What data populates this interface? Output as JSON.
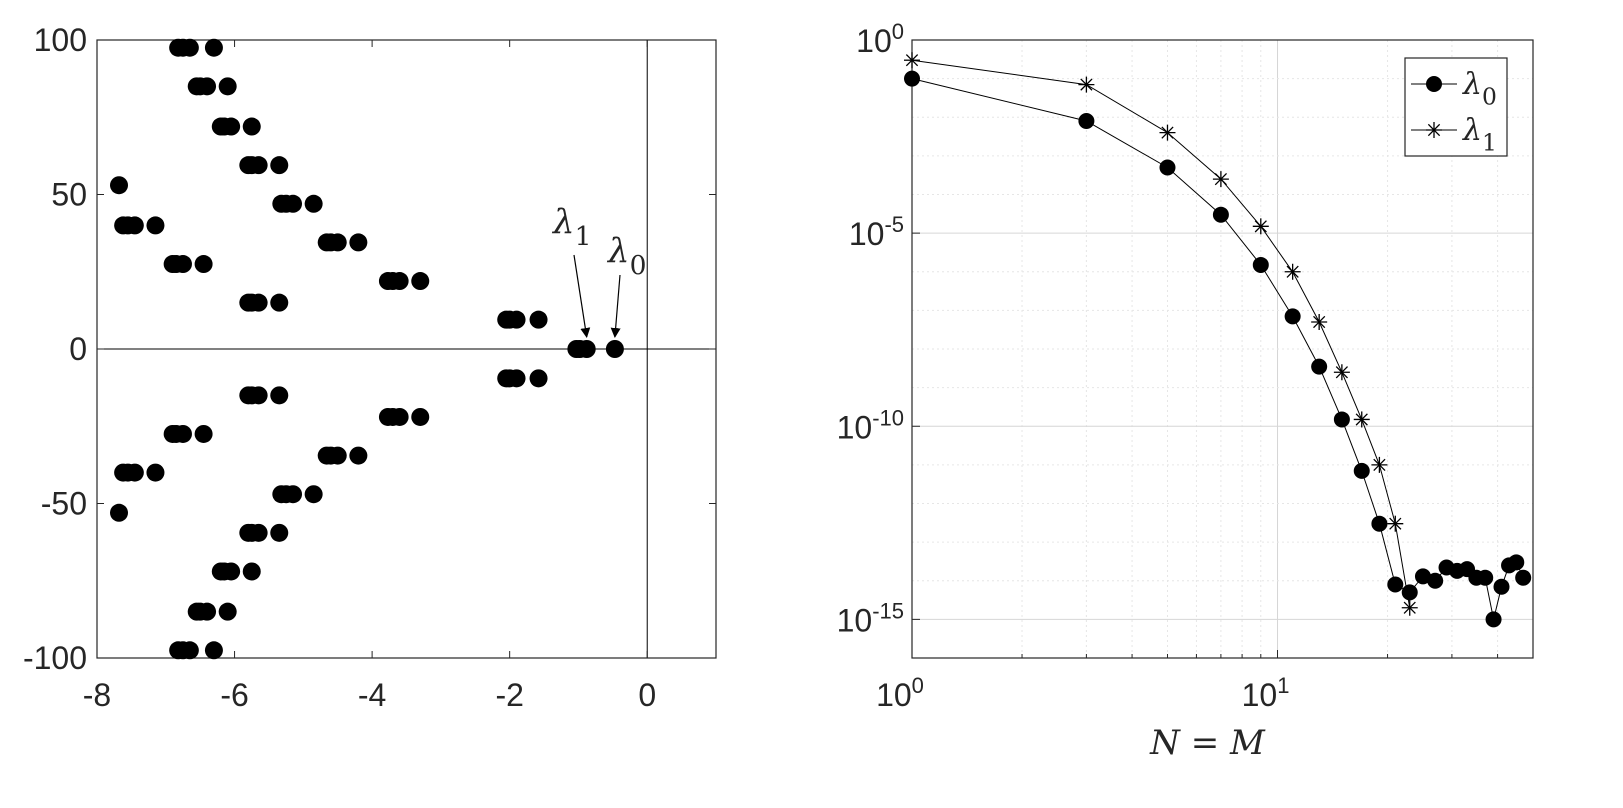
{
  "chart_data": [
    {
      "type": "scatter",
      "xlim": [
        -8,
        1
      ],
      "ylim": [
        -100,
        100
      ],
      "x_ticks": [
        -8,
        -6,
        -4,
        -2,
        0
      ],
      "y_ticks": [
        -100,
        -50,
        0,
        50,
        100
      ],
      "x_tick_labels": [
        "-8",
        "-6",
        "-4",
        "-2",
        "0"
      ],
      "y_tick_labels": [
        "-100",
        "-50",
        "0",
        "50",
        "100"
      ],
      "grid": false,
      "zero_lines": true,
      "marker": "filled-circle",
      "annotations": [
        {
          "label": "λ",
          "sub": "1",
          "target": [
            -0.88,
            0
          ]
        },
        {
          "label": "λ",
          "sub": "0",
          "target": [
            -0.47,
            0
          ]
        }
      ],
      "points": [
        [
          -0.47,
          0
        ],
        [
          -0.88,
          0
        ],
        [
          -0.98,
          0
        ],
        [
          -1.03,
          0
        ],
        [
          -1.58,
          9.5
        ],
        [
          -1.9,
          9.5
        ],
        [
          -2.0,
          9.5
        ],
        [
          -2.05,
          9.5
        ],
        [
          -1.58,
          -9.5
        ],
        [
          -1.9,
          -9.5
        ],
        [
          -2.0,
          -9.5
        ],
        [
          -2.05,
          -9.5
        ],
        [
          -3.3,
          22
        ],
        [
          -3.6,
          22
        ],
        [
          -3.7,
          22
        ],
        [
          -3.77,
          22
        ],
        [
          -3.3,
          -22
        ],
        [
          -3.6,
          -22
        ],
        [
          -3.7,
          -22
        ],
        [
          -3.77,
          -22
        ],
        [
          -4.2,
          34.5
        ],
        [
          -4.5,
          34.5
        ],
        [
          -4.6,
          34.5
        ],
        [
          -4.66,
          34.5
        ],
        [
          -4.2,
          -34.5
        ],
        [
          -4.5,
          -34.5
        ],
        [
          -4.6,
          -34.5
        ],
        [
          -4.66,
          -34.5
        ],
        [
          -4.85,
          47
        ],
        [
          -5.15,
          47
        ],
        [
          -5.25,
          47
        ],
        [
          -5.32,
          47
        ],
        [
          -4.85,
          -47
        ],
        [
          -5.15,
          -47
        ],
        [
          -5.25,
          -47
        ],
        [
          -5.32,
          -47
        ],
        [
          -5.35,
          59.5
        ],
        [
          -5.65,
          59.5
        ],
        [
          -5.75,
          59.5
        ],
        [
          -5.8,
          59.5
        ],
        [
          -5.35,
          -59.5
        ],
        [
          -5.65,
          -59.5
        ],
        [
          -5.75,
          -59.5
        ],
        [
          -5.8,
          -59.5
        ],
        [
          -5.75,
          72
        ],
        [
          -6.05,
          72
        ],
        [
          -6.15,
          72
        ],
        [
          -6.2,
          72
        ],
        [
          -5.75,
          -72
        ],
        [
          -6.05,
          -72
        ],
        [
          -6.15,
          -72
        ],
        [
          -6.2,
          -72
        ],
        [
          -6.1,
          85
        ],
        [
          -6.4,
          85
        ],
        [
          -6.5,
          85
        ],
        [
          -6.55,
          85
        ],
        [
          -6.1,
          -85
        ],
        [
          -6.4,
          -85
        ],
        [
          -6.5,
          -85
        ],
        [
          -6.55,
          -85
        ],
        [
          -6.3,
          97.5
        ],
        [
          -6.65,
          97.5
        ],
        [
          -6.75,
          97.5
        ],
        [
          -6.82,
          97.5
        ],
        [
          -6.3,
          -97.5
        ],
        [
          -6.65,
          -97.5
        ],
        [
          -6.75,
          -97.5
        ],
        [
          -6.82,
          -97.5
        ],
        [
          -5.35,
          15
        ],
        [
          -5.65,
          15
        ],
        [
          -5.75,
          15
        ],
        [
          -5.8,
          15
        ],
        [
          -5.35,
          -15
        ],
        [
          -5.65,
          -15
        ],
        [
          -5.75,
          -15
        ],
        [
          -5.8,
          -15
        ],
        [
          -6.45,
          27.5
        ],
        [
          -6.75,
          27.5
        ],
        [
          -6.85,
          27.5
        ],
        [
          -6.9,
          27.5
        ],
        [
          -6.45,
          -27.5
        ],
        [
          -6.75,
          -27.5
        ],
        [
          -6.85,
          -27.5
        ],
        [
          -6.9,
          -27.5
        ],
        [
          -7.15,
          40
        ],
        [
          -7.45,
          40
        ],
        [
          -7.55,
          40
        ],
        [
          -7.62,
          40
        ],
        [
          -7.15,
          -40
        ],
        [
          -7.45,
          -40
        ],
        [
          -7.55,
          -40
        ],
        [
          -7.62,
          -40
        ],
        [
          -7.68,
          53
        ],
        [
          -7.68,
          -53
        ]
      ]
    },
    {
      "type": "line",
      "scale": "loglog",
      "xlim": [
        1,
        50
      ],
      "ylim": [
        1e-16,
        1
      ],
      "x_tick_labels": [
        {
          "base": "10",
          "exp": "0",
          "value": 1
        },
        {
          "base": "10",
          "exp": "1",
          "value": 10
        }
      ],
      "y_tick_labels": [
        {
          "base": "10",
          "exp": "0",
          "value": 1
        },
        {
          "base": "10",
          "exp": "-5",
          "value": 1e-05
        },
        {
          "base": "10",
          "exp": "-10",
          "value": 1e-10
        },
        {
          "base": "10",
          "exp": "-15",
          "value": 1e-15
        }
      ],
      "xlabel": "N = M",
      "grid": true,
      "legend": {
        "position": "top-right",
        "entries": [
          {
            "label": "λ",
            "sub": "0",
            "marker": "filled-circle"
          },
          {
            "label": "λ",
            "sub": "1",
            "marker": "asterisk"
          }
        ]
      },
      "series": [
        {
          "name": "λ0",
          "marker": "filled-circle",
          "x": [
            1,
            3,
            5,
            7,
            9,
            11,
            13,
            15,
            17,
            19,
            21,
            23,
            25,
            27,
            29,
            31,
            33,
            35,
            37,
            39,
            41,
            43,
            45,
            47
          ],
          "y": [
            0.1,
            0.008,
            0.0005,
            3e-05,
            1.5e-06,
            7e-08,
            3.5e-09,
            1.5e-10,
            7e-12,
            3e-13,
            8e-15,
            5e-15,
            1.3e-14,
            1e-14,
            2.2e-14,
            1.8e-14,
            2e-14,
            1.2e-14,
            1.2e-14,
            1e-15,
            7e-15,
            2.5e-14,
            3e-14,
            1.2e-14
          ]
        },
        {
          "name": "λ1",
          "marker": "asterisk",
          "x": [
            1,
            3,
            5,
            7,
            9,
            11,
            13,
            15,
            17,
            19,
            21,
            23
          ],
          "y": [
            0.3,
            0.07,
            0.004,
            0.00025,
            1.5e-05,
            1e-06,
            5e-08,
            2.5e-09,
            1.5e-10,
            1e-11,
            3e-13,
            2e-15
          ]
        }
      ]
    }
  ]
}
